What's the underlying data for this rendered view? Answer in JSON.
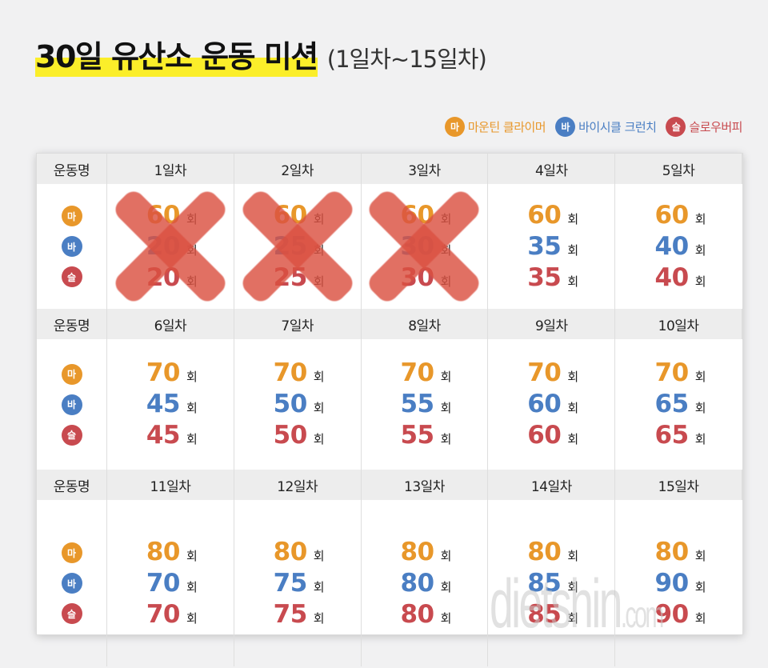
{
  "title": {
    "main": "30일 유산소 운동 미션",
    "sub": "(1일차~15일차)",
    "highlight_color": "#fbee2a"
  },
  "legend": [
    {
      "badge": "마",
      "label": "마운틴 클라이머",
      "color": "#e8972a"
    },
    {
      "badge": "바",
      "label": "바이시클 크런치",
      "color": "#4a7ec3"
    },
    {
      "badge": "슬",
      "label": "슬로우버피",
      "color": "#c84a4f"
    }
  ],
  "table": {
    "row_label": "운동명",
    "unit": "회",
    "blocks": [
      {
        "days": [
          {
            "label": "1일차",
            "ma": "60",
            "ba": "20",
            "seul": "20",
            "crossed": true
          },
          {
            "label": "2일차",
            "ma": "60",
            "ba": "25",
            "seul": "25",
            "crossed": true
          },
          {
            "label": "3일차",
            "ma": "60",
            "ba": "30",
            "seul": "30",
            "crossed": true
          },
          {
            "label": "4일차",
            "ma": "60",
            "ba": "35",
            "seul": "35",
            "crossed": false
          },
          {
            "label": "5일차",
            "ma": "60",
            "ba": "40",
            "seul": "40",
            "crossed": false
          }
        ]
      },
      {
        "days": [
          {
            "label": "6일차",
            "ma": "70",
            "ba": "45",
            "seul": "45",
            "crossed": false
          },
          {
            "label": "7일차",
            "ma": "70",
            "ba": "50",
            "seul": "50",
            "crossed": false
          },
          {
            "label": "8일차",
            "ma": "70",
            "ba": "55",
            "seul": "55",
            "crossed": false
          },
          {
            "label": "9일차",
            "ma": "70",
            "ba": "60",
            "seul": "60",
            "crossed": false
          },
          {
            "label": "10일차",
            "ma": "70",
            "ba": "65",
            "seul": "65",
            "crossed": false
          }
        ]
      },
      {
        "days": [
          {
            "label": "11일차",
            "ma": "80",
            "ba": "70",
            "seul": "70",
            "crossed": false
          },
          {
            "label": "12일차",
            "ma": "80",
            "ba": "75",
            "seul": "75",
            "crossed": false
          },
          {
            "label": "13일차",
            "ma": "80",
            "ba": "80",
            "seul": "80",
            "crossed": false
          },
          {
            "label": "14일차",
            "ma": "80",
            "ba": "85",
            "seul": "85",
            "crossed": false
          },
          {
            "label": "15일차",
            "ma": "80",
            "ba": "90",
            "seul": "90",
            "crossed": false
          }
        ]
      }
    ]
  },
  "watermark": {
    "main": "dietshin",
    "suffix": ".com"
  }
}
